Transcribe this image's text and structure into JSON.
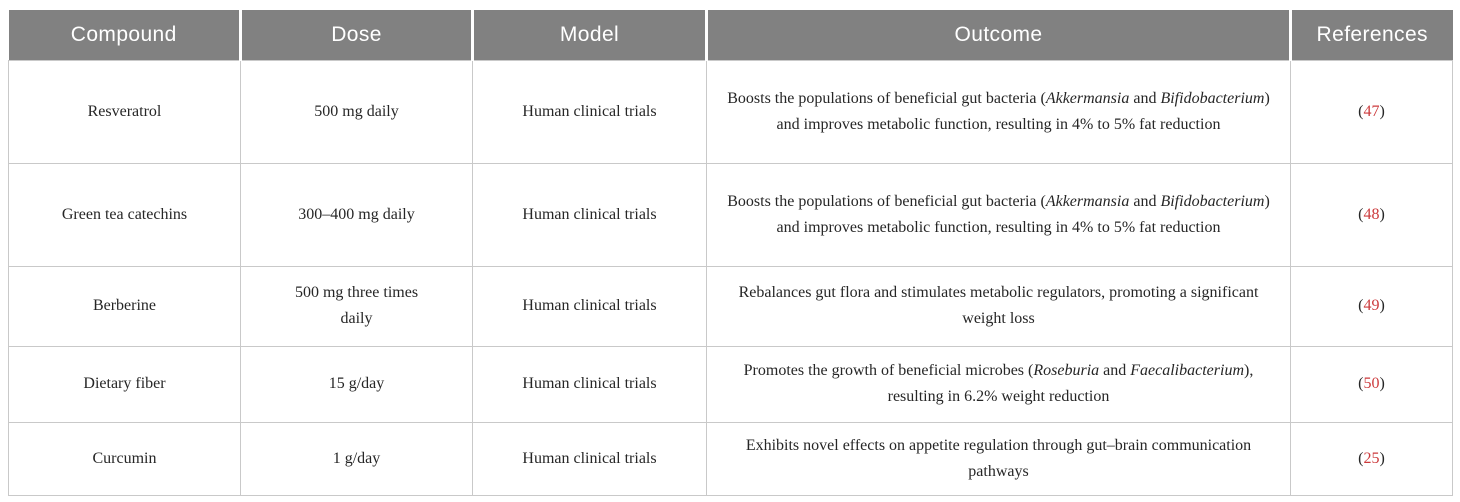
{
  "table": {
    "columns": [
      {
        "label": "Compound"
      },
      {
        "label": "Dose"
      },
      {
        "label": "Model"
      },
      {
        "label": "Outcome"
      },
      {
        "label": "References"
      }
    ],
    "ref_paren_open": "(",
    "ref_paren_close": ")",
    "rows": [
      {
        "compound": "Resveratrol",
        "dose": "500 mg daily",
        "model": "Human clinical trials",
        "outcome": [
          {
            "text": "Boosts the populations of beneficial gut bacteria (",
            "italic": false
          },
          {
            "text": "Akkermansia",
            "italic": true
          },
          {
            "text": " and ",
            "italic": false
          },
          {
            "text": "Bifidobacterium",
            "italic": true
          },
          {
            "text": ") and improves metabolic function, resulting in 4% to 5% fat reduction",
            "italic": false
          }
        ],
        "reference": "47"
      },
      {
        "compound": "Green tea catechins",
        "dose": "300–400 mg daily",
        "model": "Human clinical trials",
        "outcome": [
          {
            "text": "Boosts the populations of beneficial gut bacteria (",
            "italic": false
          },
          {
            "text": "Akkermansia",
            "italic": true
          },
          {
            "text": " and ",
            "italic": false
          },
          {
            "text": "Bifidobacterium",
            "italic": true
          },
          {
            "text": ") and improves metabolic function, resulting in 4% to 5% fat reduction",
            "italic": false
          }
        ],
        "reference": "48"
      },
      {
        "compound": "Berberine",
        "dose": "500 mg three times daily",
        "model": "Human clinical trials",
        "outcome": [
          {
            "text": "Rebalances gut flora and stimulates metabolic regulators, promoting a significant weight loss",
            "italic": false
          }
        ],
        "reference": "49"
      },
      {
        "compound": "Dietary fiber",
        "dose": "15 g/day",
        "model": "Human clinical trials",
        "outcome": [
          {
            "text": "Promotes the growth of beneficial microbes (",
            "italic": false
          },
          {
            "text": "Roseburia",
            "italic": true
          },
          {
            "text": " and ",
            "italic": false
          },
          {
            "text": "Faecalibacterium",
            "italic": true
          },
          {
            "text": "), resulting in 6.2% weight reduction",
            "italic": false
          }
        ],
        "reference": "50"
      },
      {
        "compound": "Curcumin",
        "dose": "1 g/day",
        "model": "Human clinical trials",
        "outcome": [
          {
            "text": "Exhibits novel effects on appetite regulation through gut–brain communication pathways",
            "italic": false
          }
        ],
        "reference": "25"
      }
    ]
  }
}
